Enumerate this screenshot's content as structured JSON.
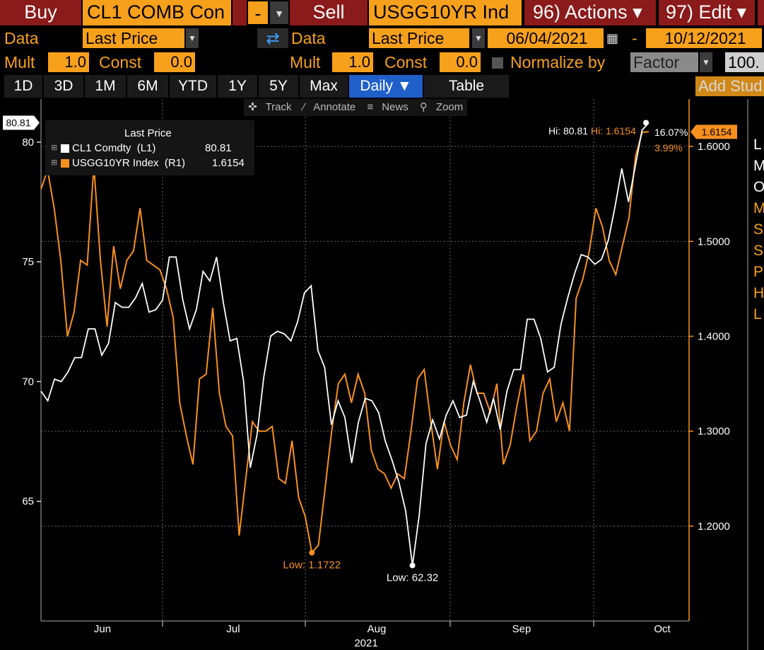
{
  "header": {
    "buy_label": "Buy",
    "buy_ticker": "CL1 COMB Con",
    "minus_label": "-",
    "sell_label": "Sell",
    "sell_ticker": "USGG10YR Ind",
    "actions_label": "96) Actions ▾",
    "edit_label": "97) Edit ▾"
  },
  "row2": {
    "data_label_left": "Data",
    "data_value_left": "Last Price",
    "data_label_right": "Data",
    "data_value_right": "Last Price",
    "date_from": "06/04/2021",
    "date_sep": "-",
    "date_to": "10/12/2021"
  },
  "row3": {
    "mult_label_left": "Mult",
    "mult_value_left": "1.0",
    "const_label_left": "Const",
    "const_value_left": "0.0",
    "mult_label_right": "Mult",
    "mult_value_right": "1.0",
    "const_label_right": "Const",
    "const_value_right": "0.0",
    "normalize_label": "Normalize by",
    "normalize_value": "Factor",
    "factor_value": "100."
  },
  "tabs": [
    "1D",
    "3D",
    "1M",
    "6M",
    "YTD",
    "1Y",
    "5Y",
    "Max",
    "Daily ▼",
    "Table"
  ],
  "add_study": "Add Stud",
  "toolbar": {
    "track": "Track",
    "annotate": "Annotate",
    "news": "News",
    "zoom": "Zoom"
  },
  "side_letters": [
    "L",
    "M",
    "O",
    "M",
    "S",
    "S",
    "P",
    "H",
    "L"
  ],
  "colors": {
    "series1": "#ffffff",
    "series2": "#f7901e",
    "amber": "#f7a01c",
    "red": "#8b1a1a",
    "blue": "#1f5fc9"
  },
  "chart_data": {
    "type": "line",
    "legend": {
      "title": "Last Price",
      "entries": [
        {
          "label": "CL1 Comdty  (L1)",
          "value": "80.81"
        },
        {
          "label": "USGG10YR Index  (R1)",
          "value": "1.6154"
        }
      ]
    },
    "x_ticks": [
      "Jun",
      "Jul",
      "Aug",
      "Sep",
      "Oct"
    ],
    "x_year": "2021",
    "left_axis": {
      "ticks": [
        "65",
        "70",
        "75",
        "80"
      ],
      "range": [
        60.0,
        81.8
      ]
    },
    "right_axis": {
      "ticks": [
        "1.2000",
        "1.3000",
        "1.4000",
        "1.5000",
        "1.6000"
      ],
      "range": [
        1.1,
        1.65
      ]
    },
    "last_labels": {
      "left": "80.81",
      "right": "1.6154"
    },
    "annotations": {
      "hi_left": "Hi: 80.81",
      "hi_right": "Hi: 1.6154",
      "pct_left": "16.07%",
      "pct_right": "3.99%",
      "low_left": "Low: 62.32",
      "low_right": "Low: 1.1722"
    },
    "series": [
      {
        "name": "CL1 Comdty",
        "axis": "left",
        "values": [
          69.6,
          69.2,
          70.1,
          70.0,
          70.4,
          71.0,
          71.0,
          72.2,
          72.2,
          71.1,
          71.6,
          73.3,
          73.1,
          73.1,
          73.5,
          74.1,
          72.9,
          73.0,
          73.4,
          75.2,
          75.2,
          73.4,
          72.2,
          73.0,
          74.6,
          74.2,
          75.2,
          73.3,
          71.7,
          71.8,
          70.0,
          66.4,
          67.8,
          70.2,
          71.9,
          72.1,
          72.0,
          71.7,
          72.5,
          73.7,
          74.0,
          71.3,
          70.6,
          68.2,
          69.2,
          68.5,
          66.6,
          68.3,
          69.3,
          69.2,
          68.7,
          67.5,
          66.7,
          65.8,
          64.6,
          62.32,
          64.4,
          67.4,
          68.4,
          67.6,
          68.6,
          69.2,
          68.5,
          68.6,
          70.0,
          69.2,
          68.3,
          69.3,
          68.0,
          69.6,
          70.5,
          70.5,
          72.6,
          72.6,
          71.8,
          70.4,
          70.6,
          72.4,
          73.5,
          74.5,
          75.3,
          75.2,
          74.9,
          75.1,
          75.9,
          77.3,
          78.9,
          77.5,
          79.0,
          80.5,
          80.81
        ]
      },
      {
        "name": "USGG10YR Index",
        "axis": "right",
        "values": [
          1.555,
          1.575,
          1.535,
          1.48,
          1.4,
          1.425,
          1.48,
          1.475,
          1.58,
          1.48,
          1.41,
          1.495,
          1.45,
          1.48,
          1.49,
          1.535,
          1.48,
          1.475,
          1.47,
          1.45,
          1.42,
          1.33,
          1.295,
          1.265,
          1.355,
          1.36,
          1.43,
          1.34,
          1.305,
          1.295,
          1.19,
          1.25,
          1.31,
          1.3,
          1.3,
          1.305,
          1.25,
          1.245,
          1.29,
          1.23,
          1.21,
          1.172,
          1.18,
          1.24,
          1.3,
          1.35,
          1.36,
          1.33,
          1.36,
          1.34,
          1.28,
          1.26,
          1.255,
          1.24,
          1.255,
          1.25,
          1.3,
          1.355,
          1.365,
          1.31,
          1.26,
          1.31,
          1.285,
          1.27,
          1.33,
          1.37,
          1.34,
          1.34,
          1.32,
          1.35,
          1.265,
          1.285,
          1.325,
          1.36,
          1.29,
          1.3,
          1.34,
          1.355,
          1.31,
          1.33,
          1.3,
          1.44,
          1.46,
          1.49,
          1.535,
          1.515,
          1.48,
          1.465,
          1.495,
          1.525,
          1.59,
          1.615,
          1.6154
        ]
      }
    ]
  }
}
